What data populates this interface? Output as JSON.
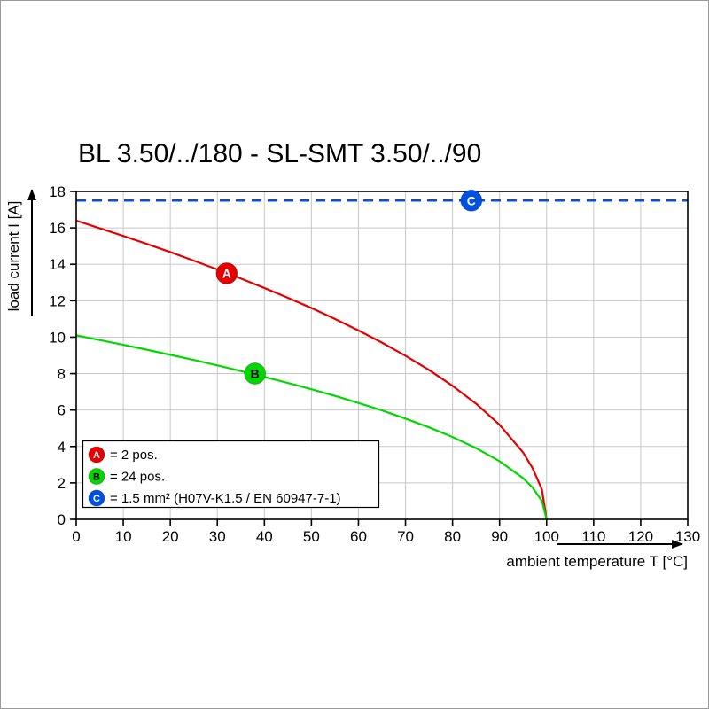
{
  "chart_data": {
    "type": "line",
    "title": "BL 3.50/../180 - SL-SMT 3.50/../90",
    "xlabel": "ambient temperature T [°C]",
    "ylabel": "load current I [A]",
    "xlim": [
      0,
      130
    ],
    "ylim": [
      0,
      18
    ],
    "xticks": [
      0,
      10,
      20,
      30,
      40,
      50,
      60,
      70,
      80,
      90,
      100,
      110,
      120,
      130
    ],
    "yticks": [
      0,
      2,
      4,
      6,
      8,
      10,
      12,
      14,
      16,
      18
    ],
    "grid": true,
    "grid_color": "#c8c8c8",
    "axis_color": "#000000",
    "legend_position": "inside-bottom-left",
    "series": [
      {
        "name": "A",
        "legend_label": "= 2 pos.",
        "color": "#e60000",
        "style": "solid",
        "marker": {
          "x": 32,
          "y": 13.5,
          "label": "A",
          "text_color": "#ffffff"
        },
        "points": [
          [
            0,
            16.4
          ],
          [
            5,
            15.98
          ],
          [
            10,
            15.56
          ],
          [
            15,
            15.12
          ],
          [
            20,
            14.67
          ],
          [
            25,
            14.2
          ],
          [
            30,
            13.72
          ],
          [
            35,
            13.22
          ],
          [
            40,
            12.7
          ],
          [
            45,
            12.16
          ],
          [
            50,
            11.6
          ],
          [
            55,
            11.0
          ],
          [
            60,
            10.37
          ],
          [
            65,
            9.7
          ],
          [
            70,
            8.98
          ],
          [
            75,
            8.2
          ],
          [
            80,
            7.33
          ],
          [
            85,
            6.35
          ],
          [
            90,
            5.19
          ],
          [
            95,
            3.67
          ],
          [
            97,
            2.82
          ],
          [
            99,
            1.64
          ],
          [
            100,
            0
          ]
        ]
      },
      {
        "name": "B",
        "legend_label": "= 24 pos.",
        "color": "#00d800",
        "style": "solid",
        "marker": {
          "x": 38,
          "y": 8,
          "label": "B",
          "text_color": "#000000"
        },
        "points": [
          [
            0,
            10.1
          ],
          [
            5,
            9.84
          ],
          [
            10,
            9.58
          ],
          [
            15,
            9.31
          ],
          [
            20,
            9.03
          ],
          [
            25,
            8.75
          ],
          [
            30,
            8.45
          ],
          [
            35,
            8.14
          ],
          [
            40,
            7.82
          ],
          [
            45,
            7.49
          ],
          [
            50,
            7.14
          ],
          [
            55,
            6.78
          ],
          [
            60,
            6.39
          ],
          [
            65,
            5.98
          ],
          [
            70,
            5.53
          ],
          [
            75,
            5.05
          ],
          [
            80,
            4.52
          ],
          [
            85,
            3.91
          ],
          [
            90,
            3.19
          ],
          [
            95,
            2.26
          ],
          [
            97,
            1.75
          ],
          [
            99,
            1.01
          ],
          [
            100,
            0
          ]
        ]
      },
      {
        "name": "C",
        "legend_label": "= 1.5 mm² (H07V-K1.5 / EN 60947-7-1)",
        "color": "#0050e0",
        "style": "dashed",
        "marker": {
          "x": 84,
          "y": 17.5,
          "label": "C",
          "text_color": "#ffffff"
        },
        "points": [
          [
            0,
            17.5
          ],
          [
            130,
            17.5
          ]
        ]
      }
    ]
  }
}
